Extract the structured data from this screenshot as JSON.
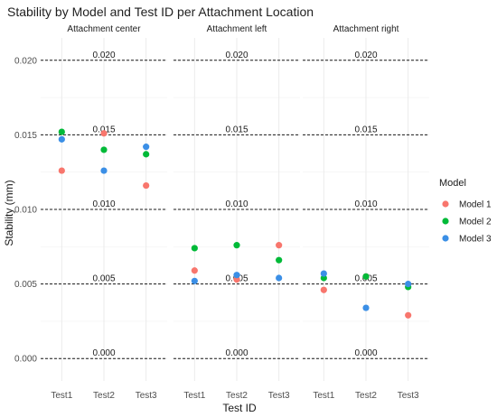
{
  "chart_data": {
    "type": "scatter",
    "title": "Stability by Model and Test ID per Attachment Location",
    "xlabel": "Test ID",
    "ylabel": "Stability (mm)",
    "categories": [
      "Test1",
      "Test2",
      "Test3"
    ],
    "ylim": [
      -0.0015,
      0.0215
    ],
    "y_ticks": [
      0.0,
      0.005,
      0.01,
      0.015,
      0.02
    ],
    "y_tick_labels": [
      "0.000",
      "0.005",
      "0.010",
      "0.015",
      "0.020"
    ],
    "grid": true,
    "legend_position": "right",
    "reference_lines": {
      "values": [
        0.0,
        0.005,
        0.01,
        0.015,
        0.02
      ],
      "labels": [
        "0.000",
        "0.005",
        "0.010",
        "0.015",
        "0.020"
      ],
      "style": "dashed"
    },
    "legend": {
      "title": "Model",
      "entries": [
        {
          "name": "Model 1",
          "color": "#F8766D"
        },
        {
          "name": "Model 2",
          "color": "#00BA38"
        },
        {
          "name": "Model 3",
          "color": "#3B8FE6"
        }
      ]
    },
    "facets": [
      {
        "label": "Attachment center",
        "series": [
          {
            "name": "Model 1",
            "color": "#F8766D",
            "points": [
              {
                "x": "Test1",
                "y": 0.0126
              },
              {
                "x": "Test2",
                "y": 0.0151
              },
              {
                "x": "Test3",
                "y": 0.0116
              }
            ]
          },
          {
            "name": "Model 2",
            "color": "#00BA38",
            "points": [
              {
                "x": "Test1",
                "y": 0.0152
              },
              {
                "x": "Test2",
                "y": 0.014
              },
              {
                "x": "Test3",
                "y": 0.0137
              }
            ]
          },
          {
            "name": "Model 3",
            "color": "#3B8FE6",
            "points": [
              {
                "x": "Test1",
                "y": 0.0147
              },
              {
                "x": "Test2",
                "y": 0.0126
              },
              {
                "x": "Test3",
                "y": 0.0142
              }
            ]
          }
        ]
      },
      {
        "label": "Attachment left",
        "series": [
          {
            "name": "Model 1",
            "color": "#F8766D",
            "points": [
              {
                "x": "Test1",
                "y": 0.0059
              },
              {
                "x": "Test2",
                "y": 0.0053
              },
              {
                "x": "Test3",
                "y": 0.0076
              }
            ]
          },
          {
            "name": "Model 2",
            "color": "#00BA38",
            "points": [
              {
                "x": "Test1",
                "y": 0.0074
              },
              {
                "x": "Test2",
                "y": 0.0076
              },
              {
                "x": "Test3",
                "y": 0.0066
              }
            ]
          },
          {
            "name": "Model 3",
            "color": "#3B8FE6",
            "points": [
              {
                "x": "Test1",
                "y": 0.0052
              },
              {
                "x": "Test2",
                "y": 0.0056
              },
              {
                "x": "Test3",
                "y": 0.0054
              }
            ]
          }
        ]
      },
      {
        "label": "Attachment right",
        "series": [
          {
            "name": "Model 1",
            "color": "#F8766D",
            "points": [
              {
                "x": "Test1",
                "y": 0.0046
              },
              {
                "x": "Test2",
                "y": 0.0055
              },
              {
                "x": "Test3",
                "y": 0.0029
              }
            ]
          },
          {
            "name": "Model 2",
            "color": "#00BA38",
            "points": [
              {
                "x": "Test1",
                "y": 0.0054
              },
              {
                "x": "Test2",
                "y": 0.0055
              },
              {
                "x": "Test3",
                "y": 0.0048
              }
            ]
          },
          {
            "name": "Model 3",
            "color": "#3B8FE6",
            "points": [
              {
                "x": "Test1",
                "y": 0.0057
              },
              {
                "x": "Test2",
                "y": 0.0034
              },
              {
                "x": "Test3",
                "y": 0.005
              }
            ]
          }
        ]
      }
    ]
  }
}
